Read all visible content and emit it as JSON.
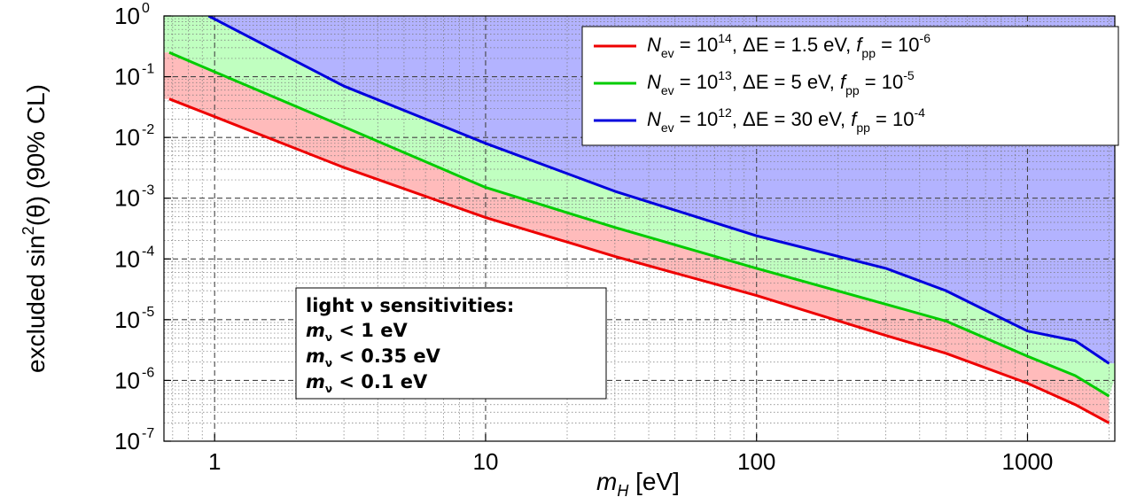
{
  "chart_data": {
    "type": "area",
    "xscale": "log",
    "yscale": "log",
    "xlim": [
      0.65,
      2100
    ],
    "ylim": [
      1e-07,
      1
    ],
    "grid": true,
    "xlabel": {
      "main": "m",
      "sub": "H",
      "unit": " [eV]"
    },
    "ylabel": {
      "main": "excluded sin",
      "sup": "2",
      "rest": "(θ) (90% CL)"
    },
    "x_ticks": [
      {
        "value": 1,
        "label": "1"
      },
      {
        "value": 10,
        "label": "10"
      },
      {
        "value": 100,
        "label": "100"
      },
      {
        "value": 1000,
        "label": "1000"
      }
    ],
    "y_ticks": [
      {
        "value": 1e-07,
        "base": "10",
        "exp": "-7"
      },
      {
        "value": 1e-06,
        "base": "10",
        "exp": "-6"
      },
      {
        "value": 1e-05,
        "base": "10",
        "exp": "-5"
      },
      {
        "value": 0.0001,
        "base": "10",
        "exp": "-4"
      },
      {
        "value": 0.001,
        "base": "10",
        "exp": "-3"
      },
      {
        "value": 0.01,
        "base": "10",
        "exp": "-2"
      },
      {
        "value": 0.1,
        "base": "10",
        "exp": "-1"
      },
      {
        "value": 1,
        "base": "10",
        "exp": "0"
      }
    ],
    "series": [
      {
        "key": "blue",
        "color": "#0000dd",
        "fill": "#b3b3ff",
        "legend": {
          "n": "N",
          "nsub": "ev",
          "neq": " = 10",
          "nexp": "12",
          "de": ", ΔE",
          "deq": " = 30 eV, ",
          "f": "f",
          "fsub": "pp",
          "feq": " = 10",
          "fexp": "-4"
        },
        "x": [
          0.95,
          3,
          10,
          30,
          100,
          300,
          500,
          1000,
          1500,
          2000
        ],
        "y": [
          1.0,
          0.07,
          0.008,
          0.0013,
          0.00024,
          7e-05,
          3e-05,
          6.5e-06,
          4.5e-06,
          1.9e-06
        ]
      },
      {
        "key": "green",
        "color": "#00cc00",
        "fill": "#c0ffc0",
        "legend": {
          "n": "N",
          "nsub": "ev",
          "neq": " = 10",
          "nexp": "13",
          "de": ", ΔE",
          "deq": " = 5 eV, ",
          "f": "f",
          "fsub": "pp",
          "feq": " = 10",
          "fexp": "-5"
        },
        "x": [
          0.68,
          1,
          3,
          10,
          30,
          100,
          300,
          500,
          1000,
          1500,
          2000
        ],
        "y": [
          0.25,
          0.12,
          0.015,
          0.0015,
          0.00033,
          7e-05,
          1.8e-05,
          9.5e-06,
          2.5e-06,
          1.2e-06,
          5.5e-07
        ]
      },
      {
        "key": "red",
        "color": "#ee0000",
        "fill": "#ffbbbb",
        "legend": {
          "n": "N",
          "nsub": "ev",
          "neq": " = 10",
          "nexp": "14",
          "de": ", ΔE",
          "deq": " = 1.5 eV, ",
          "f": "f",
          "fsub": "pp",
          "feq": " = 10",
          "fexp": "-6"
        },
        "x": [
          0.68,
          1,
          3,
          10,
          30,
          100,
          300,
          500,
          1000,
          1500,
          2000
        ],
        "y": [
          0.043,
          0.022,
          0.0032,
          0.00048,
          0.00011,
          2.5e-05,
          5.5e-06,
          2.8e-06,
          9e-07,
          4e-07,
          2e-07
        ]
      }
    ],
    "legend_order": [
      "red",
      "green",
      "blue"
    ],
    "legend_placement": "top-right",
    "annotation": {
      "title": "light ν sensitivities:",
      "lines": [
        {
          "m": "m",
          "sub": "ν",
          "text": " < 1 eV",
          "color": "#0000cc"
        },
        {
          "m": "m",
          "sub": "ν",
          "text": " < 0.35 eV",
          "color": "#00dd00"
        },
        {
          "m": "m",
          "sub": "ν",
          "text": " < 0.1 eV",
          "color": "#ee0000"
        }
      ]
    }
  }
}
